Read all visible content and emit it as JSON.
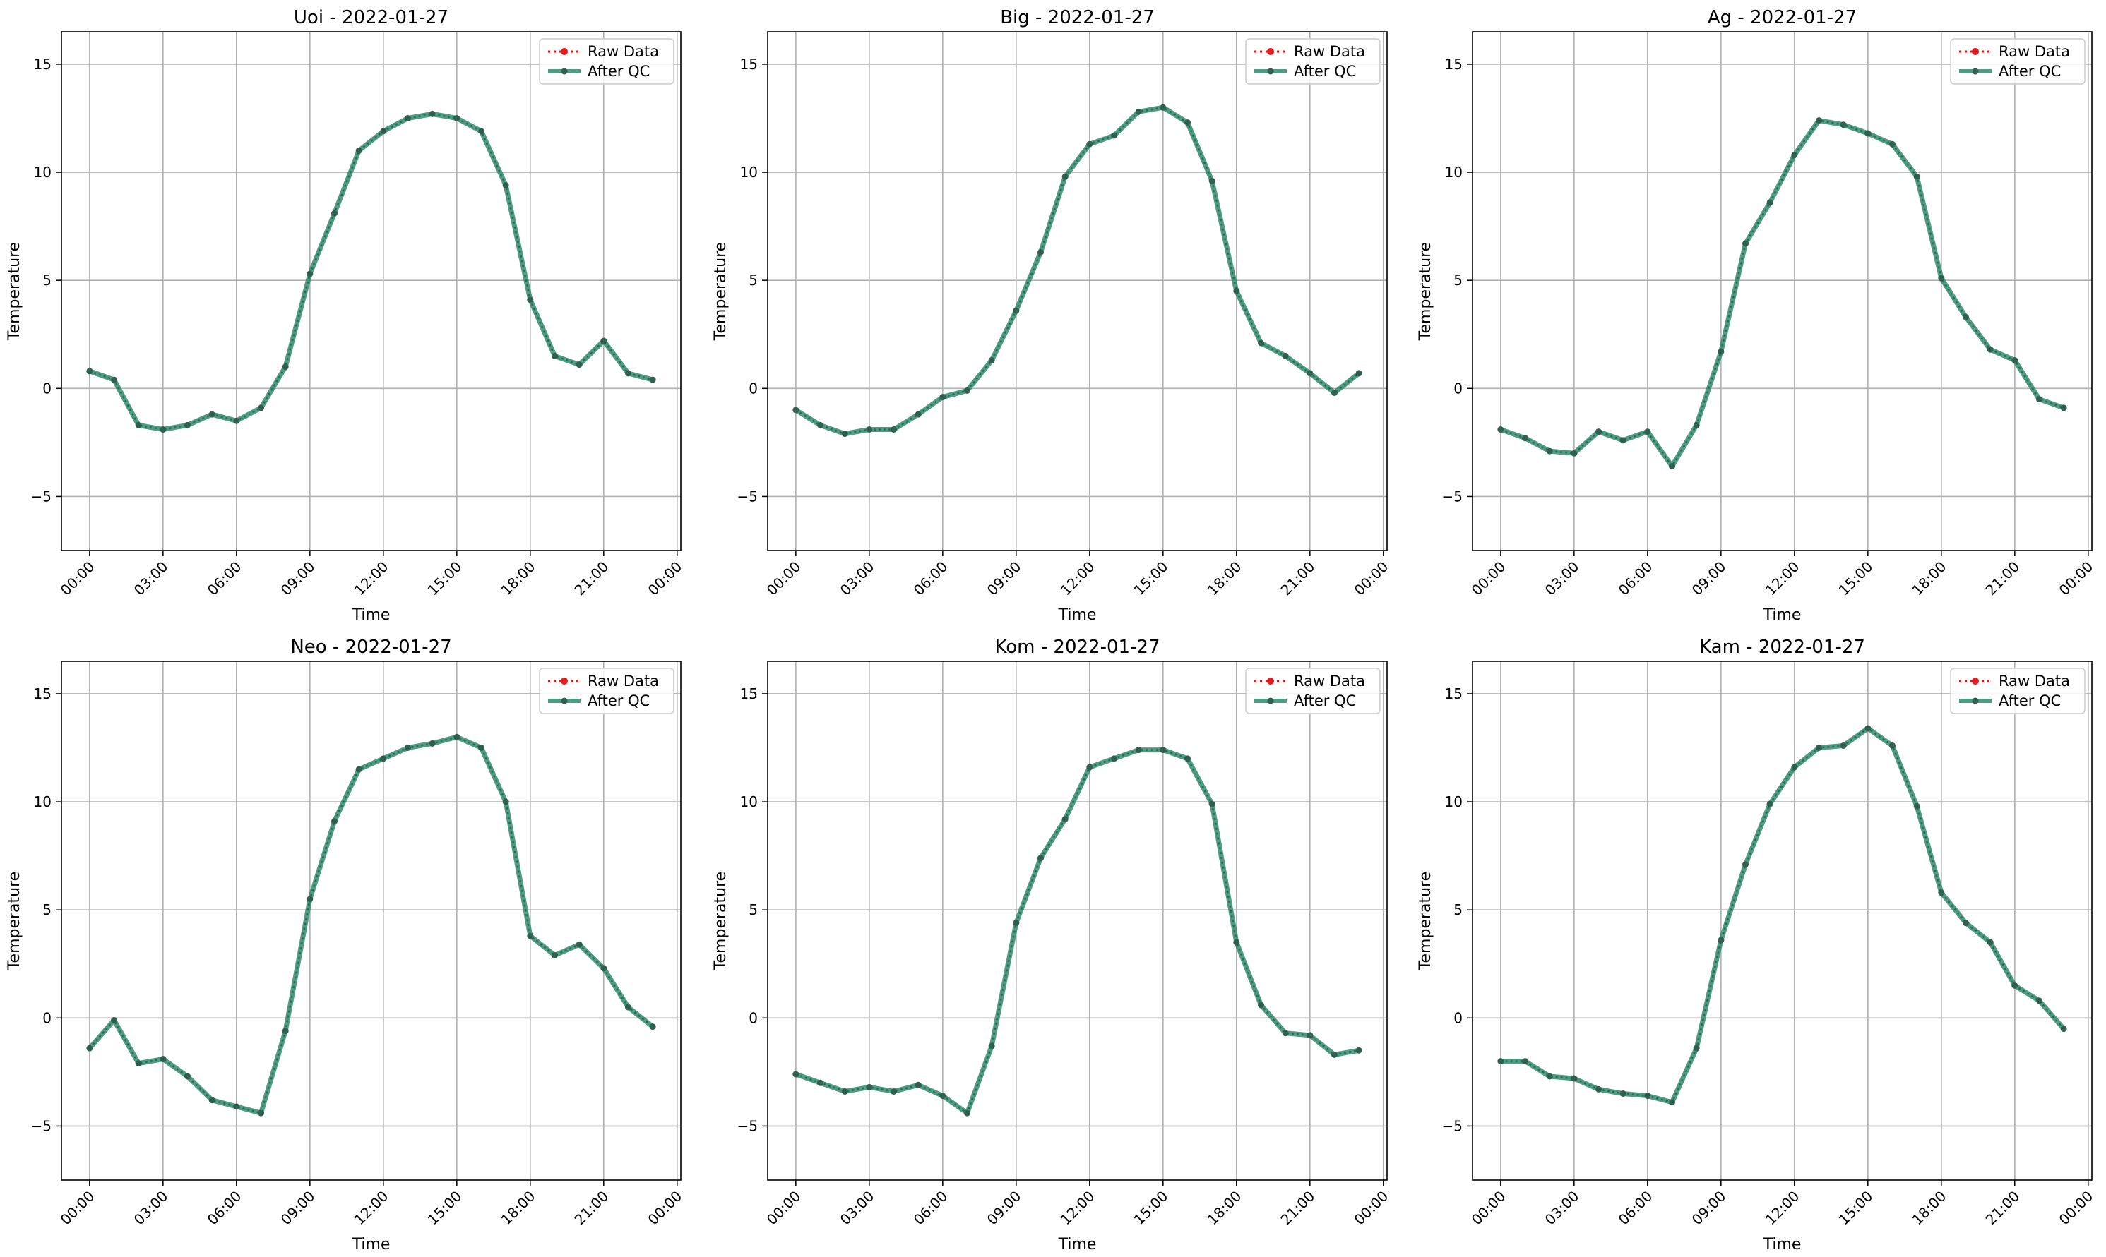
{
  "figure": {
    "x_tick_labels": [
      "00:00",
      "03:00",
      "06:00",
      "09:00",
      "12:00",
      "15:00",
      "18:00",
      "21:00",
      "00:00"
    ],
    "y_ticks": [
      -5,
      0,
      5,
      10,
      15
    ],
    "xlabel": "Time",
    "ylabel": "Temperature",
    "legend": {
      "placement": "top-right",
      "entries": [
        "Raw Data",
        "After QC"
      ]
    },
    "colors": {
      "raw": "#e41a1c",
      "after_qc": "#2e8b6e",
      "marker": "#2f5f4f",
      "grid": "#b0b0b0"
    }
  },
  "chart_data": [
    {
      "type": "line",
      "title": "Uoi - 2022-01-27",
      "xlabel": "Time",
      "ylabel": "Temperature",
      "x": [
        "00:00",
        "01:00",
        "02:00",
        "03:00",
        "04:00",
        "05:00",
        "06:00",
        "07:00",
        "08:00",
        "09:00",
        "10:00",
        "11:00",
        "12:00",
        "13:00",
        "14:00",
        "15:00",
        "16:00",
        "17:00",
        "18:00",
        "19:00",
        "20:00",
        "21:00",
        "22:00",
        "23:00"
      ],
      "xlim": [
        "2022-01-27 00:00",
        "2022-01-28 00:00"
      ],
      "ylim": [
        -7.5,
        16.5
      ],
      "grid": true,
      "legend": "top-right",
      "series": [
        {
          "name": "Raw Data",
          "values": [
            0.8,
            0.4,
            -1.7,
            -1.9,
            -1.7,
            -1.2,
            -1.5,
            -0.9,
            1.0,
            5.3,
            8.1,
            11.0,
            11.9,
            12.5,
            12.7,
            12.5,
            11.9,
            9.4,
            4.1,
            1.5,
            1.1,
            2.2,
            0.7,
            0.4
          ]
        },
        {
          "name": "After QC",
          "values": [
            0.8,
            0.4,
            -1.7,
            -1.9,
            -1.7,
            -1.2,
            -1.5,
            -0.9,
            1.0,
            5.3,
            8.1,
            11.0,
            11.9,
            12.5,
            12.7,
            12.5,
            11.9,
            9.4,
            4.1,
            1.5,
            1.1,
            2.2,
            0.7,
            0.4
          ]
        }
      ]
    },
    {
      "type": "line",
      "title": "Big - 2022-01-27",
      "xlabel": "Time",
      "ylabel": "Temperature",
      "x": [
        "00:00",
        "01:00",
        "02:00",
        "03:00",
        "04:00",
        "05:00",
        "06:00",
        "07:00",
        "08:00",
        "09:00",
        "10:00",
        "11:00",
        "12:00",
        "13:00",
        "14:00",
        "15:00",
        "16:00",
        "17:00",
        "18:00",
        "19:00",
        "20:00",
        "21:00",
        "22:00",
        "23:00"
      ],
      "xlim": [
        "2022-01-27 00:00",
        "2022-01-28 00:00"
      ],
      "ylim": [
        -7.5,
        16.5
      ],
      "grid": true,
      "legend": "top-right",
      "series": [
        {
          "name": "Raw Data",
          "values": [
            -1.0,
            -1.7,
            -2.1,
            -1.9,
            -1.9,
            -1.2,
            -0.4,
            -0.1,
            1.3,
            3.6,
            6.3,
            9.8,
            11.3,
            11.7,
            12.8,
            13.0,
            12.3,
            9.6,
            4.5,
            2.1,
            1.5,
            0.7,
            -0.2,
            0.7
          ]
        },
        {
          "name": "After QC",
          "values": [
            -1.0,
            -1.7,
            -2.1,
            -1.9,
            -1.9,
            -1.2,
            -0.4,
            -0.1,
            1.3,
            3.6,
            6.3,
            9.8,
            11.3,
            11.7,
            12.8,
            13.0,
            12.3,
            9.6,
            4.5,
            2.1,
            1.5,
            0.7,
            -0.2,
            0.7
          ]
        }
      ]
    },
    {
      "type": "line",
      "title": "Ag - 2022-01-27",
      "xlabel": "Time",
      "ylabel": "Temperature",
      "x": [
        "00:00",
        "01:00",
        "02:00",
        "03:00",
        "04:00",
        "05:00",
        "06:00",
        "07:00",
        "08:00",
        "09:00",
        "10:00",
        "11:00",
        "12:00",
        "13:00",
        "14:00",
        "15:00",
        "16:00",
        "17:00",
        "18:00",
        "19:00",
        "20:00",
        "21:00",
        "22:00",
        "23:00"
      ],
      "xlim": [
        "2022-01-27 00:00",
        "2022-01-28 00:00"
      ],
      "ylim": [
        -7.5,
        16.5
      ],
      "grid": true,
      "legend": "top-right",
      "series": [
        {
          "name": "Raw Data",
          "values": [
            -1.9,
            -2.3,
            -2.9,
            -3.0,
            -2.0,
            -2.4,
            -2.0,
            -3.6,
            -1.7,
            1.7,
            6.7,
            8.6,
            10.8,
            12.4,
            12.2,
            11.8,
            11.3,
            9.8,
            5.1,
            3.3,
            1.8,
            1.3,
            -0.5,
            -0.9
          ]
        },
        {
          "name": "After QC",
          "values": [
            -1.9,
            -2.3,
            -2.9,
            -3.0,
            -2.0,
            -2.4,
            -2.0,
            -3.6,
            -1.7,
            1.7,
            6.7,
            8.6,
            10.8,
            12.4,
            12.2,
            11.8,
            11.3,
            9.8,
            5.1,
            3.3,
            1.8,
            1.3,
            -0.5,
            -0.9
          ]
        }
      ]
    },
    {
      "type": "line",
      "title": "Neo - 2022-01-27",
      "xlabel": "Time",
      "ylabel": "Temperature",
      "x": [
        "00:00",
        "01:00",
        "02:00",
        "03:00",
        "04:00",
        "05:00",
        "06:00",
        "07:00",
        "08:00",
        "09:00",
        "10:00",
        "11:00",
        "12:00",
        "13:00",
        "14:00",
        "15:00",
        "16:00",
        "17:00",
        "18:00",
        "19:00",
        "20:00",
        "21:00",
        "22:00",
        "23:00"
      ],
      "xlim": [
        "2022-01-27 00:00",
        "2022-01-28 00:00"
      ],
      "ylim": [
        -7.5,
        16.5
      ],
      "grid": true,
      "legend": "top-right",
      "series": [
        {
          "name": "Raw Data",
          "values": [
            -1.4,
            -0.1,
            -2.1,
            -1.9,
            -2.7,
            -3.8,
            -4.1,
            -4.4,
            -0.6,
            5.5,
            9.1,
            11.5,
            12.0,
            12.5,
            12.7,
            13.0,
            12.5,
            10.0,
            3.8,
            2.9,
            3.4,
            2.3,
            0.5,
            -0.4
          ]
        },
        {
          "name": "After QC",
          "values": [
            -1.4,
            -0.1,
            -2.1,
            -1.9,
            -2.7,
            -3.8,
            -4.1,
            -4.4,
            -0.6,
            5.5,
            9.1,
            11.5,
            12.0,
            12.5,
            12.7,
            13.0,
            12.5,
            10.0,
            3.8,
            2.9,
            3.4,
            2.3,
            0.5,
            -0.4
          ]
        }
      ]
    },
    {
      "type": "line",
      "title": "Kom - 2022-01-27",
      "xlabel": "Time",
      "ylabel": "Temperature",
      "x": [
        "00:00",
        "01:00",
        "02:00",
        "03:00",
        "04:00",
        "05:00",
        "06:00",
        "07:00",
        "08:00",
        "09:00",
        "10:00",
        "11:00",
        "12:00",
        "13:00",
        "14:00",
        "15:00",
        "16:00",
        "17:00",
        "18:00",
        "19:00",
        "20:00",
        "21:00",
        "22:00",
        "23:00"
      ],
      "xlim": [
        "2022-01-27 00:00",
        "2022-01-28 00:00"
      ],
      "ylim": [
        -7.5,
        16.5
      ],
      "grid": true,
      "legend": "top-right",
      "series": [
        {
          "name": "Raw Data",
          "values": [
            -2.6,
            -3.0,
            -3.4,
            -3.2,
            -3.4,
            -3.1,
            -3.6,
            -4.4,
            -1.3,
            4.4,
            7.4,
            9.2,
            11.6,
            12.0,
            12.4,
            12.4,
            12.0,
            9.9,
            3.5,
            0.6,
            -0.7,
            -0.8,
            -1.7,
            -1.5
          ]
        },
        {
          "name": "After QC",
          "values": [
            -2.6,
            -3.0,
            -3.4,
            -3.2,
            -3.4,
            -3.1,
            -3.6,
            -4.4,
            -1.3,
            4.4,
            7.4,
            9.2,
            11.6,
            12.0,
            12.4,
            12.4,
            12.0,
            9.9,
            3.5,
            0.6,
            -0.7,
            -0.8,
            -1.7,
            -1.5
          ]
        }
      ]
    },
    {
      "type": "line",
      "title": "Kam - 2022-01-27",
      "xlabel": "Time",
      "ylabel": "Temperature",
      "x": [
        "00:00",
        "01:00",
        "02:00",
        "03:00",
        "04:00",
        "05:00",
        "06:00",
        "07:00",
        "08:00",
        "09:00",
        "10:00",
        "11:00",
        "12:00",
        "13:00",
        "14:00",
        "15:00",
        "16:00",
        "17:00",
        "18:00",
        "19:00",
        "20:00",
        "21:00",
        "22:00",
        "23:00"
      ],
      "xlim": [
        "2022-01-27 00:00",
        "2022-01-28 00:00"
      ],
      "ylim": [
        -7.5,
        16.5
      ],
      "grid": true,
      "legend": "top-right",
      "series": [
        {
          "name": "Raw Data",
          "values": [
            -2.0,
            -2.0,
            -2.7,
            -2.8,
            -3.3,
            -3.5,
            -3.6,
            -3.9,
            -1.4,
            3.6,
            7.1,
            9.9,
            11.6,
            12.5,
            12.6,
            13.4,
            12.6,
            9.8,
            5.8,
            4.4,
            3.5,
            1.5,
            0.8,
            -0.5
          ]
        },
        {
          "name": "After QC",
          "values": [
            -2.0,
            -2.0,
            -2.7,
            -2.8,
            -3.3,
            -3.5,
            -3.6,
            -3.9,
            -1.4,
            3.6,
            7.1,
            9.9,
            11.6,
            12.5,
            12.6,
            13.4,
            12.6,
            9.8,
            5.8,
            4.4,
            3.5,
            1.5,
            0.8,
            -0.5
          ]
        }
      ]
    }
  ]
}
